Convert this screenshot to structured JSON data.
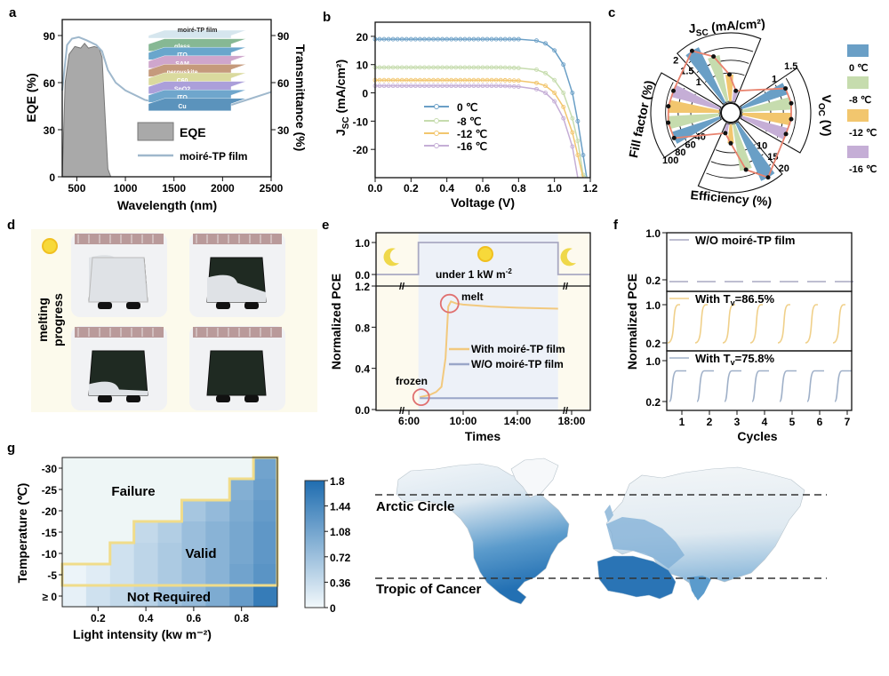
{
  "panels": {
    "a": "a",
    "b": "b",
    "c": "c",
    "d": "d",
    "e": "e",
    "f": "f",
    "g": "g"
  },
  "colors": {
    "c0": "#6a9fc6",
    "c8": "#c6dcae",
    "c12": "#f2c66e",
    "c16": "#c5aed6",
    "eqe": "#a9a9a9",
    "film": "#9fb8cc",
    "outline": "#e8826e",
    "heat_low": "#f2f8fb",
    "heat_high": "#1f6db0",
    "valid_border": "#f0dc8a"
  },
  "chart_data": [
    {
      "panel": "a",
      "type": "area",
      "xlabel": "Wavelength (nm)",
      "ylabel": "EQE (%)",
      "ylabel_right": "Transmittance (%)",
      "xlim": [
        350,
        2500
      ],
      "ylim": [
        0,
        100
      ],
      "xticks": [
        "500",
        "1000",
        "1500",
        "2000",
        "2500"
      ],
      "yticks": [
        "0",
        "30",
        "60",
        "90"
      ],
      "yticks_right": [
        "30",
        "60",
        "90"
      ],
      "legend": [
        "EQE",
        "moiré-TP film"
      ],
      "inset_layers": [
        "moiré-TP film",
        "glass",
        "ITO",
        "SAM",
        "perovskite",
        "C60",
        "SnO2",
        "ITO",
        "Cu"
      ],
      "series": [
        {
          "name": "EQE",
          "x": [
            350,
            380,
            420,
            480,
            540,
            580,
            620,
            680,
            730,
            760,
            790,
            820,
            850,
            2500
          ],
          "y": [
            0,
            60,
            78,
            83,
            82,
            85,
            82,
            83,
            82,
            76,
            40,
            5,
            0,
            0
          ]
        },
        {
          "name": "moiré-TP film",
          "x": [
            350,
            400,
            450,
            520,
            600,
            700,
            760,
            820,
            900,
            1000,
            1200,
            1500,
            1800,
            2100,
            2500
          ],
          "y": [
            55,
            84,
            88,
            89,
            87,
            84,
            80,
            68,
            60,
            55,
            49,
            45,
            44,
            46,
            54
          ]
        }
      ]
    },
    {
      "panel": "b",
      "type": "line",
      "xlabel": "Voltage  (V)",
      "ylabel_main": "J",
      "ylabel_sub": "SC",
      "ylabel_unit": " (mA/cm²)",
      "xlim": [
        0,
        1.2
      ],
      "ylim": [
        -30,
        25
      ],
      "xticks": [
        "0.0",
        "0.2",
        "0.4",
        "0.6",
        "0.8",
        "1.0",
        "1.2"
      ],
      "yticks": [
        "20",
        "10",
        "0",
        "-10",
        "-20"
      ],
      "x": [
        0,
        0.1,
        0.2,
        0.3,
        0.4,
        0.5,
        0.6,
        0.7,
        0.8,
        0.9,
        0.95,
        1.0,
        1.05,
        1.1,
        1.13,
        1.16,
        1.18
      ],
      "series": [
        {
          "name": "0 ℃",
          "y": [
            19,
            19,
            19,
            19,
            19,
            19,
            19,
            19,
            19,
            18.5,
            17.5,
            15,
            10,
            0,
            -10,
            -22,
            -30
          ]
        },
        {
          "name": "-8 ℃",
          "y": [
            9,
            9,
            9,
            9,
            9,
            9,
            9,
            9,
            8.8,
            8.2,
            7,
            4.5,
            0,
            -9,
            -17,
            -29,
            -30
          ]
        },
        {
          "name": "-12 ℃",
          "y": [
            4.5,
            4.5,
            4.5,
            4.5,
            4.5,
            4.5,
            4.5,
            4.5,
            4.3,
            3.5,
            2.5,
            0,
            -5,
            -14,
            -22,
            -30,
            null
          ]
        },
        {
          "name": "-16 ℃",
          "y": [
            2.5,
            2.5,
            2.5,
            2.5,
            2.5,
            2.5,
            2.5,
            2.5,
            2.2,
            1.3,
            0,
            -3,
            -9,
            -19,
            -30,
            null,
            null
          ]
        }
      ]
    },
    {
      "panel": "c",
      "type": "polar-bar",
      "legend": [
        "0 ℃",
        "-8 ℃",
        "-12 ℃",
        "-16 ℃"
      ],
      "axes": [
        {
          "key": "jsc",
          "title_main": "J",
          "title_sub": "SC",
          "title_unit": " (mA/cm²)",
          "max": 2,
          "ticks": [
            "1",
            "1.5",
            "2"
          ],
          "values": [
            1.95,
            1.5,
            0.85,
            0.35
          ]
        },
        {
          "key": "voc",
          "title_main": "V",
          "title_sub": "OC",
          "title_unit": " (V)",
          "max": 1.5,
          "ticks": [
            "1",
            "1.5"
          ],
          "values": [
            1.15,
            1.18,
            1.17,
            1.13
          ]
        },
        {
          "key": "eff",
          "title_main": "Efficiency (%)",
          "max": 20,
          "ticks": [
            "10",
            "15",
            "20"
          ],
          "values": [
            20,
            15,
            6,
            3
          ]
        },
        {
          "key": "ff",
          "title_main": "Fill factor (%)",
          "max": 100,
          "ticks": [
            "40",
            "60",
            "80",
            "100"
          ],
          "values": [
            80,
            82,
            81,
            79
          ]
        }
      ]
    },
    {
      "panel": "e",
      "type": "line",
      "xlabel": "Times",
      "ylabel": "Normalized PCE",
      "xlim": [
        3.6,
        19.4
      ],
      "ylim": [
        0,
        1.2
      ],
      "top_ylim": [
        0,
        1
      ],
      "xticks": [
        "6:00",
        "10:00",
        "14:00",
        "18:00"
      ],
      "yticks": [
        "0.0",
        "0.4",
        "0.8",
        "1.2"
      ],
      "top_yticks": [
        "0.0",
        "1.0"
      ],
      "top_label_main": "under 1 kW m",
      "top_label_sup": "-2",
      "annotations": [
        "melt",
        "frozen"
      ],
      "light": {
        "t": [
          3.6,
          6.7,
          6.7,
          17,
          17,
          19.4
        ],
        "v": [
          0,
          0,
          1,
          1,
          0,
          0
        ]
      },
      "series": [
        {
          "name": "With moiré-TP film",
          "t": [
            6.8,
            7.5,
            8.0,
            8.4,
            8.7,
            8.9,
            9.1,
            9.5,
            10,
            12,
            14,
            17
          ],
          "y": [
            0.12,
            0.14,
            0.17,
            0.22,
            0.5,
            1.0,
            1.05,
            1.03,
            1.02,
            1.0,
            0.99,
            0.98
          ]
        },
        {
          "name": "W/O moiré-TP film",
          "t": [
            6.8,
            17
          ],
          "y": [
            0.11,
            0.11
          ]
        }
      ]
    },
    {
      "panel": "f",
      "type": "line",
      "xlabel": "Cycles",
      "ylabel": "Normalized PCE",
      "xticks": [
        "1",
        "2",
        "3",
        "4",
        "5",
        "6",
        "7"
      ],
      "subplots": [
        {
          "label_main": "W/O moiré-TP film",
          "label_sub": "",
          "label_tail": "",
          "yticks": [
            "1.0",
            "0.2"
          ],
          "start": 0.17,
          "end": 0.17,
          "style": "dashed"
        },
        {
          "label_main": "With T",
          "label_sub": "v",
          "label_tail": "=86.5%",
          "yticks": [
            "1.0",
            "0.2"
          ],
          "start": 0.2,
          "end": 1.0,
          "style": "s-curve"
        },
        {
          "label_main": "With T",
          "label_sub": "v",
          "label_tail": "=75.8%",
          "yticks": [
            "1.0",
            "0.2"
          ],
          "start": 0.2,
          "end": 0.8,
          "style": "step"
        }
      ]
    },
    {
      "panel": "g",
      "type": "heatmap",
      "xlabel": "Light intensity (kw m⁻²)",
      "ylabel": "Temperature (℃)",
      "x": [
        0.1,
        0.2,
        0.3,
        0.4,
        0.5,
        0.6,
        0.7,
        0.8,
        0.9
      ],
      "xticks": [
        "0.2",
        "0.4",
        "0.6",
        "0.8"
      ],
      "rows": [
        "-30",
        "-25",
        "-20",
        "-15",
        "-10",
        "-5",
        "≥ 0"
      ],
      "values": [
        [
          null,
          null,
          null,
          null,
          null,
          null,
          null,
          null,
          1.1
        ],
        [
          null,
          null,
          null,
          null,
          null,
          null,
          null,
          0.95,
          1.15
        ],
        [
          null,
          null,
          null,
          null,
          null,
          0.65,
          0.8,
          1.0,
          1.2
        ],
        [
          null,
          null,
          null,
          0.4,
          0.55,
          0.75,
          0.9,
          1.05,
          1.25
        ],
        [
          null,
          null,
          0.3,
          0.45,
          0.6,
          0.75,
          0.9,
          1.05,
          1.25
        ],
        [
          0.05,
          0.15,
          0.3,
          0.45,
          0.6,
          0.75,
          0.9,
          1.1,
          1.3
        ],
        [
          0.1,
          0.3,
          0.4,
          0.5,
          0.7,
          0.8,
          1.0,
          1.2,
          1.6
        ]
      ],
      "zlim": [
        0,
        1.8
      ],
      "colorbar_ticks": [
        "1.8",
        "1.44",
        "1.08",
        "0.72",
        "0.36",
        "0"
      ],
      "region_labels": {
        "failure": "Failure",
        "valid": "Valid",
        "not_required": "Not Required"
      }
    }
  ],
  "photos": {
    "label": "melting progress"
  },
  "map": {
    "arctic": "Arctic Circle",
    "tropic": "Tropic of Cancer"
  }
}
